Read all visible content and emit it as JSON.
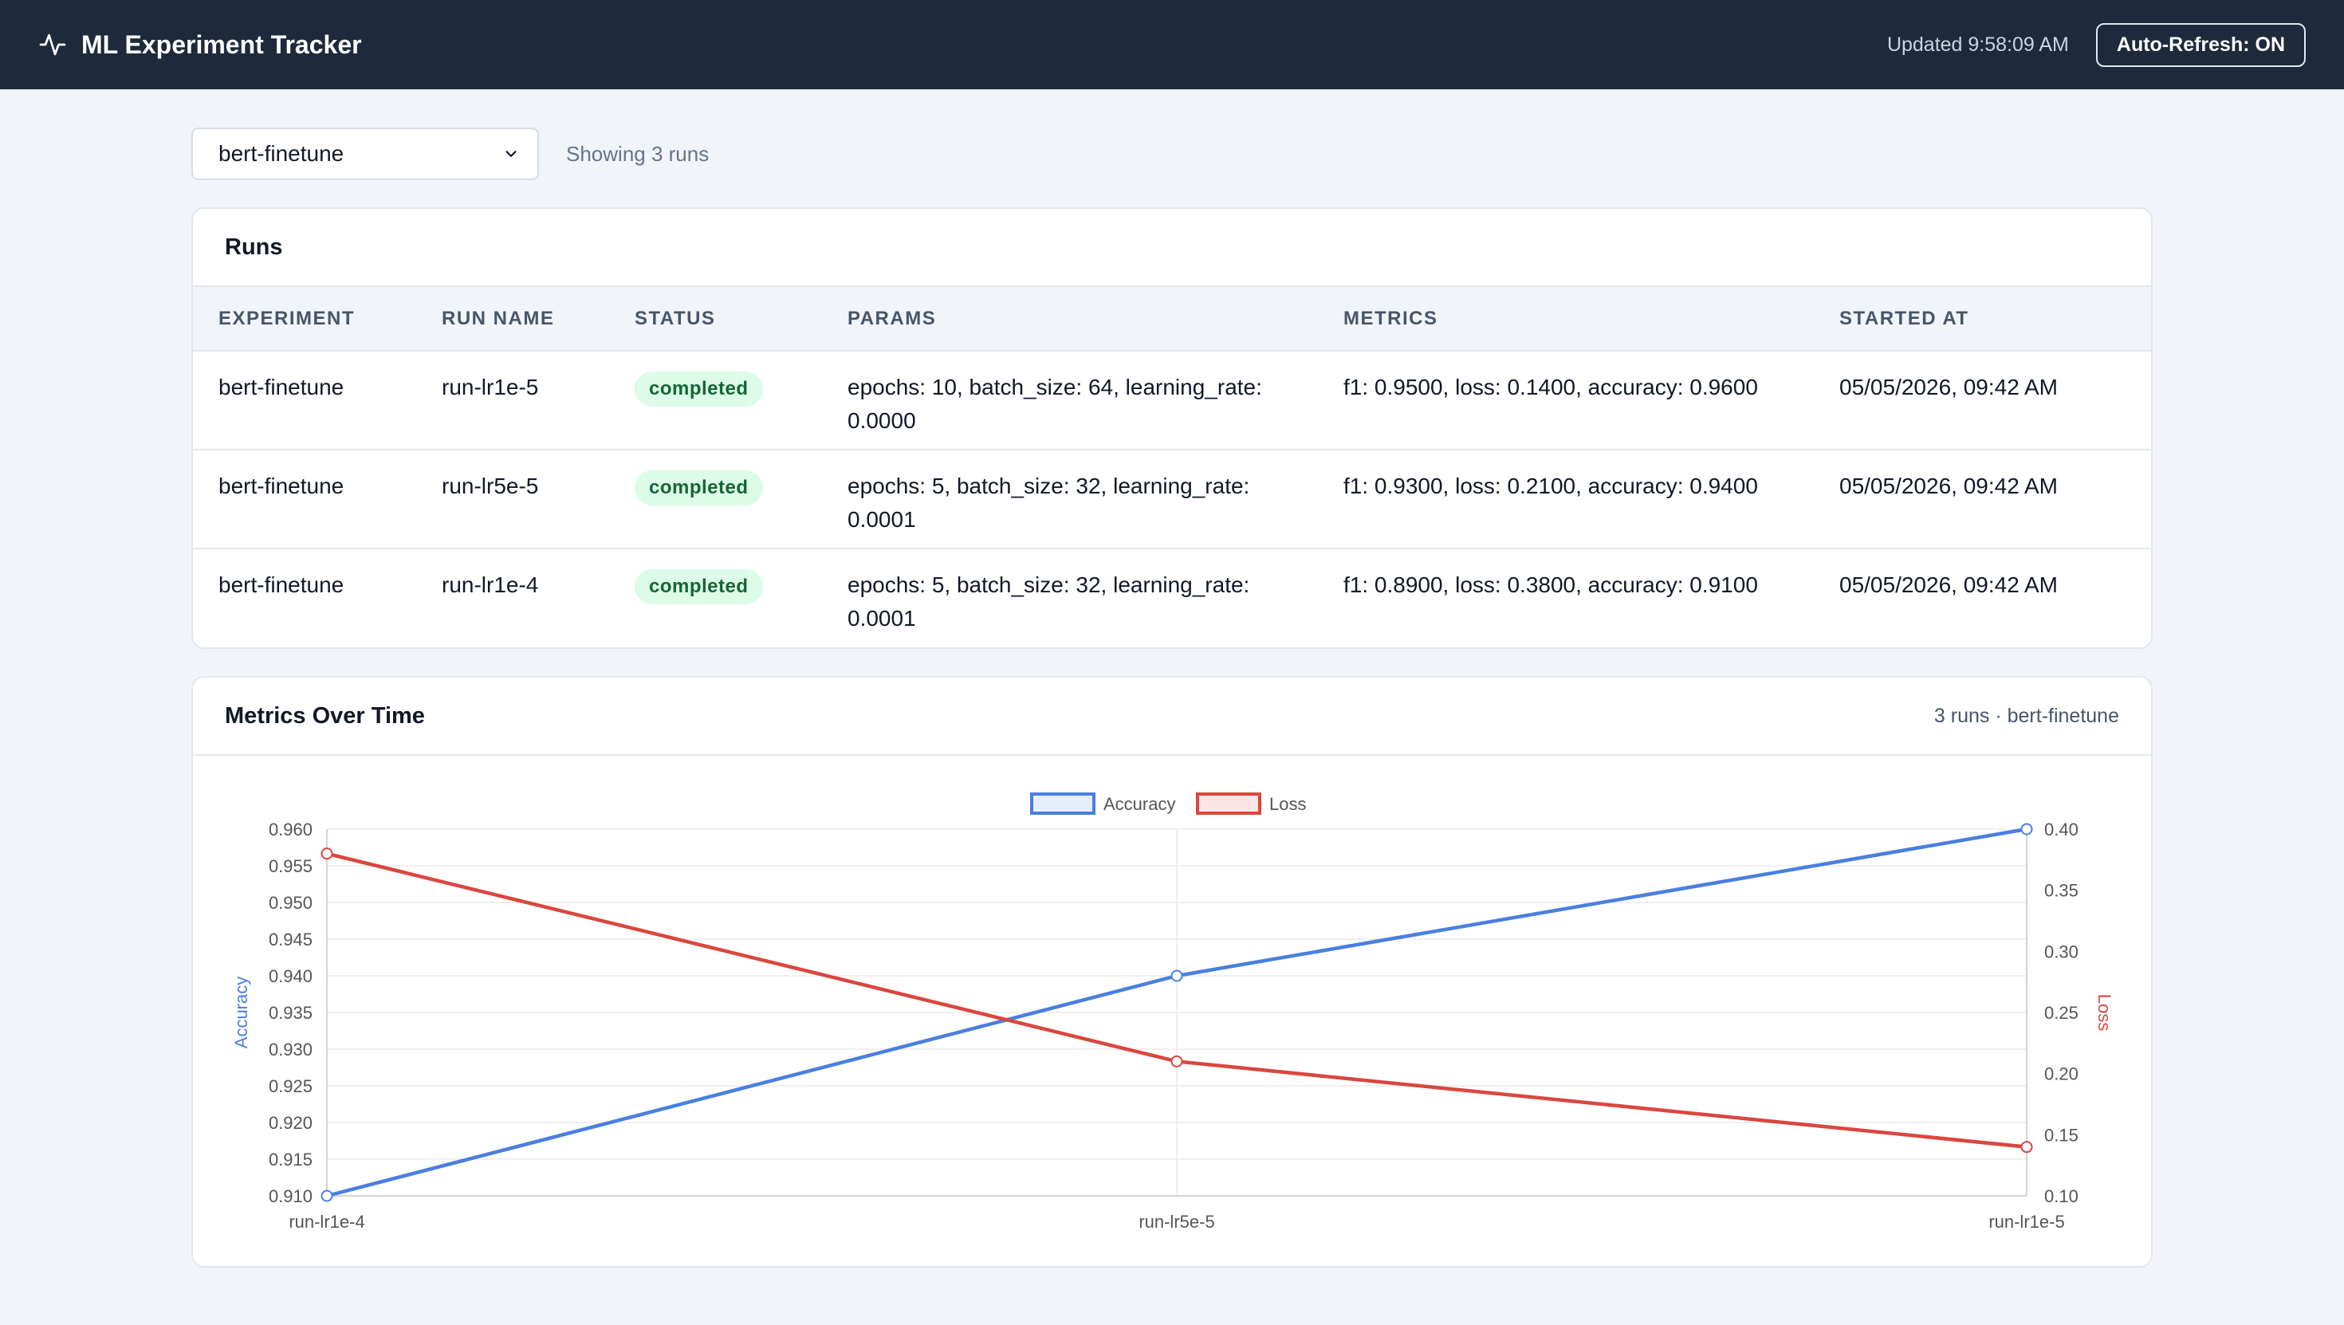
{
  "header": {
    "title": "ML Experiment Tracker",
    "updated": "Updated 9:58:09 AM",
    "refresh_label": "Auto-Refresh: ON",
    "icon": "activity-icon"
  },
  "toolbar": {
    "experiment_selected": "bert-finetune",
    "run_count": "Showing 3 runs"
  },
  "runs": {
    "title": "Runs",
    "columns": [
      "EXPERIMENT",
      "RUN NAME",
      "STATUS",
      "PARAMS",
      "METRICS",
      "STARTED AT"
    ],
    "rows": [
      {
        "experiment": "bert-finetune",
        "run_name": "run-lr1e-5",
        "status": "completed",
        "params": "epochs: 10, batch_size: 64, learning_rate: 0.0000",
        "metrics": "f1: 0.9500, loss: 0.1400, accuracy: 0.9600",
        "started_at": "05/05/2026, 09:42 AM"
      },
      {
        "experiment": "bert-finetune",
        "run_name": "run-lr5e-5",
        "status": "completed",
        "params": "epochs: 5, batch_size: 32, learning_rate: 0.0001",
        "metrics": "f1: 0.9300, loss: 0.2100, accuracy: 0.9400",
        "started_at": "05/05/2026, 09:42 AM"
      },
      {
        "experiment": "bert-finetune",
        "run_name": "run-lr1e-4",
        "status": "completed",
        "params": "epochs: 5, batch_size: 32, learning_rate: 0.0001",
        "metrics": "f1: 0.8900, loss: 0.3800, accuracy: 0.9100",
        "started_at": "05/05/2026, 09:42 AM"
      }
    ]
  },
  "metrics_card": {
    "title": "Metrics Over Time",
    "subtitle": "3 runs · bert-finetune"
  },
  "chart_data": {
    "type": "line",
    "categories": [
      "run-lr1e-4",
      "run-lr5e-5",
      "run-lr1e-5"
    ],
    "series": [
      {
        "name": "Accuracy",
        "values": [
          0.91,
          0.94,
          0.96
        ],
        "color": "#4a7fe0",
        "axis": "left"
      },
      {
        "name": "Loss",
        "values": [
          0.38,
          0.21,
          0.14
        ],
        "color": "#d9473f",
        "axis": "right"
      }
    ],
    "ylabel": "Accuracy",
    "y2label": "Loss",
    "ylim": [
      0.91,
      0.96
    ],
    "y2lim": [
      0.1,
      0.4
    ],
    "yticks": [
      "0.960",
      "0.955",
      "0.950",
      "0.945",
      "0.940",
      "0.935",
      "0.930",
      "0.925",
      "0.920",
      "0.915",
      "0.910"
    ],
    "y2ticks": [
      "0.40",
      "0.35",
      "0.30",
      "0.25",
      "0.20",
      "0.15",
      "0.10"
    ],
    "legend": "top-center",
    "grid": true
  }
}
